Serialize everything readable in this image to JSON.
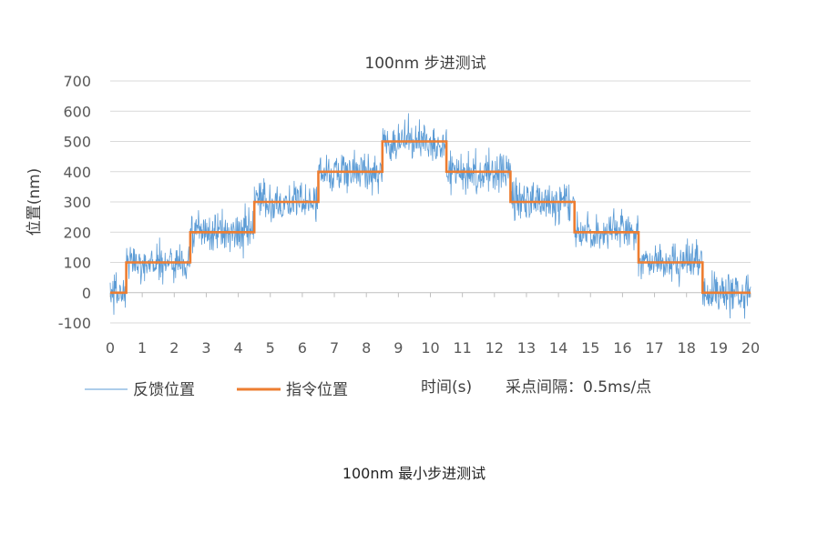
{
  "caption": "100nm 最小步进测试",
  "chart_data": {
    "type": "line",
    "title": "100nm 步进测试",
    "ylabel": "位置(nm)",
    "xlabel": "时间(s)",
    "note": "采点间隔：0.5ms/点",
    "xlim": [
      0,
      20
    ],
    "ylim": [
      -100,
      700
    ],
    "x_ticks": [
      0,
      1,
      2,
      3,
      4,
      5,
      6,
      7,
      8,
      9,
      10,
      11,
      12,
      13,
      14,
      15,
      16,
      17,
      18,
      19,
      20
    ],
    "y_ticks": [
      -100,
      0,
      100,
      200,
      300,
      400,
      500,
      600,
      700
    ],
    "grid": "horizontal",
    "legend_position": "bottom-left",
    "colors": {
      "feedback": "#5b9bd5",
      "command": "#ed7d31",
      "grid": "#d9d9d9",
      "text": "#595959"
    },
    "series": [
      {
        "name": "反馈位置",
        "style": "noisy",
        "noise_amplitude_nm": 100,
        "segments": [
          {
            "x0": 0,
            "x1": 0.5,
            "y": 0
          },
          {
            "x0": 0.5,
            "x1": 2.5,
            "y": 100
          },
          {
            "x0": 2.5,
            "x1": 4.5,
            "y": 200
          },
          {
            "x0": 4.5,
            "x1": 6.5,
            "y": 300
          },
          {
            "x0": 6.5,
            "x1": 8.5,
            "y": 400
          },
          {
            "x0": 8.5,
            "x1": 10.5,
            "y": 500
          },
          {
            "x0": 10.5,
            "x1": 12.5,
            "y": 400
          },
          {
            "x0": 12.5,
            "x1": 14.5,
            "y": 300
          },
          {
            "x0": 14.5,
            "x1": 16.5,
            "y": 200
          },
          {
            "x0": 16.5,
            "x1": 18.5,
            "y": 100
          },
          {
            "x0": 18.5,
            "x1": 20,
            "y": 0
          }
        ]
      },
      {
        "name": "指令位置",
        "style": "step",
        "x": [
          0,
          0.5,
          0.5,
          2.5,
          2.5,
          4.5,
          4.5,
          6.5,
          6.5,
          8.5,
          8.5,
          10.5,
          10.5,
          12.5,
          12.5,
          14.5,
          14.5,
          16.5,
          16.5,
          18.5,
          18.5,
          20
        ],
        "y": [
          0,
          0,
          100,
          100,
          200,
          200,
          300,
          300,
          400,
          400,
          500,
          500,
          400,
          400,
          300,
          300,
          200,
          200,
          100,
          100,
          0,
          0
        ]
      }
    ]
  }
}
